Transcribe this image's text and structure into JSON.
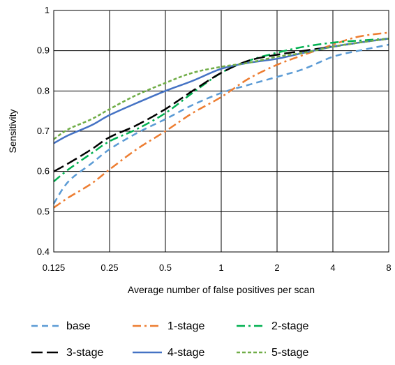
{
  "chart_data": {
    "type": "line",
    "title": "",
    "xlabel": "Average number of false positives per scan",
    "ylabel": "Sensitivity",
    "x_scale": "log2",
    "xlim": [
      0.125,
      8
    ],
    "ylim": [
      0.4,
      1
    ],
    "x_ticks": [
      0.125,
      0.25,
      0.5,
      1,
      2,
      4,
      8
    ],
    "x_tick_labels": [
      "0.125",
      "0.25",
      "0.5",
      "1",
      "2",
      "4",
      "8"
    ],
    "y_ticks": [
      0.4,
      0.5,
      0.6,
      0.7,
      0.8,
      0.9,
      1
    ],
    "y_tick_labels": [
      "0.4",
      "0.5",
      "0.6",
      "0.7",
      "0.8",
      "0.9",
      "1"
    ],
    "grid": true,
    "legend_position": "bottom",
    "series": [
      {
        "name": "base",
        "color": "#5b9bd5",
        "dash": "dashed",
        "x": [
          0.125,
          0.15,
          0.2,
          0.25,
          0.35,
          0.5,
          0.7,
          1,
          1.4,
          2,
          2.8,
          4,
          5.5,
          8
        ],
        "y": [
          0.52,
          0.575,
          0.62,
          0.655,
          0.695,
          0.73,
          0.765,
          0.795,
          0.815,
          0.835,
          0.855,
          0.885,
          0.9,
          0.915
        ]
      },
      {
        "name": "1-stage",
        "color": "#ed7d31",
        "dash": "dashdot",
        "x": [
          0.125,
          0.15,
          0.2,
          0.25,
          0.35,
          0.5,
          0.7,
          1,
          1.4,
          2,
          2.8,
          4,
          5.5,
          8
        ],
        "y": [
          0.51,
          0.535,
          0.57,
          0.605,
          0.655,
          0.7,
          0.745,
          0.785,
          0.83,
          0.865,
          0.89,
          0.915,
          0.935,
          0.945
        ]
      },
      {
        "name": "2-stage",
        "color": "#00b050",
        "dash": "dashdot",
        "x": [
          0.125,
          0.15,
          0.2,
          0.25,
          0.35,
          0.5,
          0.7,
          1,
          1.4,
          2,
          2.8,
          4,
          5.5,
          8
        ],
        "y": [
          0.575,
          0.605,
          0.645,
          0.675,
          0.705,
          0.745,
          0.795,
          0.845,
          0.875,
          0.895,
          0.91,
          0.92,
          0.925,
          0.93
        ]
      },
      {
        "name": "3-stage",
        "color": "#000000",
        "dash": "longdash",
        "x": [
          0.125,
          0.15,
          0.2,
          0.25,
          0.35,
          0.5,
          0.7,
          1,
          1.4,
          2,
          2.8,
          4,
          5.5,
          8
        ],
        "y": [
          0.6,
          0.62,
          0.655,
          0.685,
          0.715,
          0.755,
          0.8,
          0.845,
          0.875,
          0.89,
          0.9,
          0.91,
          0.92,
          0.93
        ]
      },
      {
        "name": "4-stage",
        "color": "#4472c4",
        "dash": "solid",
        "x": [
          0.125,
          0.15,
          0.2,
          0.25,
          0.35,
          0.5,
          0.7,
          1,
          1.4,
          2,
          2.8,
          4,
          5.5,
          8
        ],
        "y": [
          0.67,
          0.69,
          0.715,
          0.74,
          0.77,
          0.8,
          0.825,
          0.855,
          0.87,
          0.88,
          0.895,
          0.91,
          0.92,
          0.93
        ]
      },
      {
        "name": "5-stage",
        "color": "#70ad47",
        "dash": "dotted",
        "x": [
          0.125,
          0.15,
          0.2,
          0.25,
          0.35,
          0.5,
          0.7,
          1,
          1.4,
          2,
          2.8,
          4,
          5.5,
          8
        ],
        "y": [
          0.68,
          0.705,
          0.73,
          0.755,
          0.79,
          0.82,
          0.845,
          0.86,
          0.87,
          0.885,
          0.895,
          0.91,
          0.92,
          0.93
        ]
      }
    ]
  }
}
